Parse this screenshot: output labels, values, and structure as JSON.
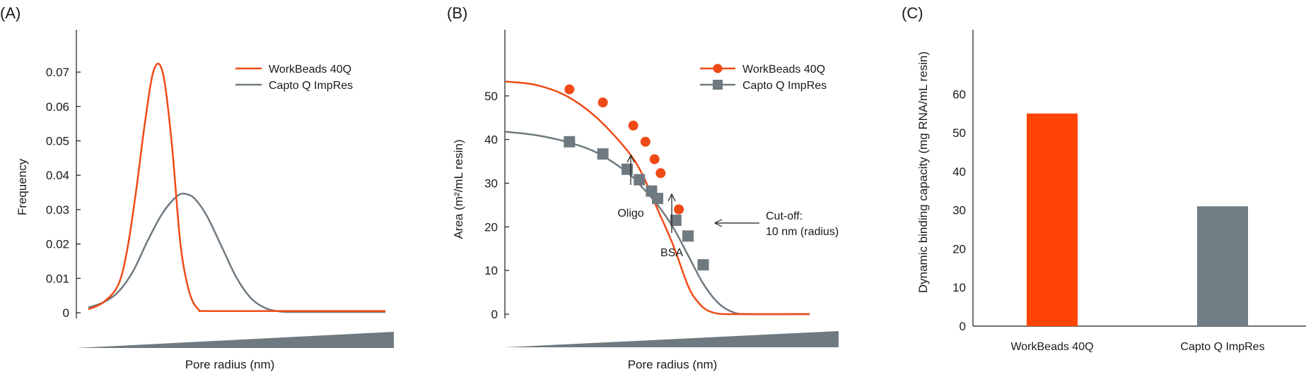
{
  "colors": {
    "orange": "#ef4a16",
    "gray": "#6f7a80",
    "bar_orange": "#ff4405",
    "bar_gray": "#717e84",
    "axis": "#1a1a1a"
  },
  "chart_data": [
    {
      "panel": "(A)",
      "type": "line",
      "xlabel": "Pore radius (nm)",
      "ylabel": "Frequency",
      "ylim": [
        0,
        0.075
      ],
      "yticks": [
        "0",
        "0.01",
        "0.02",
        "0.03",
        "0.04",
        "0.05",
        "0.06",
        "0.07"
      ],
      "ytick_values": [
        0,
        0.01,
        0.02,
        0.03,
        0.04,
        0.05,
        0.06,
        0.07
      ],
      "x_axis": "unlabeled increasing wedge (no numeric ticks)",
      "legend": "top-right",
      "series": [
        {
          "name": "WorkBeads 40Q",
          "color": "#ef4a16",
          "x": [
            0,
            0.05,
            0.1,
            0.13,
            0.16,
            0.19,
            0.22,
            0.25,
            0.28,
            0.31,
            0.34,
            0.37,
            0.4,
            0.6,
            0.8,
            1.0
          ],
          "y": [
            0.001,
            0.003,
            0.008,
            0.018,
            0.035,
            0.055,
            0.0705,
            0.07,
            0.05,
            0.02,
            0.006,
            0.001,
            0.0005,
            0.0005,
            0.0005,
            0.0005
          ]
        },
        {
          "name": "Capto Q ImpRes",
          "color": "#6f7a80",
          "x": [
            0,
            0.05,
            0.1,
            0.15,
            0.2,
            0.25,
            0.3,
            0.33,
            0.36,
            0.4,
            0.45,
            0.5,
            0.55,
            0.6,
            0.65,
            0.7,
            0.8,
            1.0
          ],
          "y": [
            0.0015,
            0.003,
            0.006,
            0.012,
            0.021,
            0.029,
            0.034,
            0.0345,
            0.033,
            0.028,
            0.019,
            0.01,
            0.004,
            0.0012,
            0.0003,
            0.0002,
            0.0002,
            0.0002
          ]
        }
      ]
    },
    {
      "panel": "(B)",
      "type": "line",
      "xlabel": "Pore radius (nm)",
      "ylabel": "Area (m²/mL resin)",
      "ylim": [
        0,
        57
      ],
      "yticks": [
        "0",
        "10",
        "20",
        "30",
        "40",
        "50"
      ],
      "ytick_values": [
        0,
        10,
        20,
        30,
        40,
        50
      ],
      "x_axis": "unlabeled increasing wedge (no numeric ticks)",
      "legend": "top-right",
      "series": [
        {
          "name": "WorkBeads 40Q",
          "color": "#ef4a16",
          "marker": "circle",
          "curve_x": [
            0,
            0.1,
            0.2,
            0.3,
            0.4,
            0.45,
            0.5,
            0.55,
            0.6,
            0.63,
            0.66,
            0.7,
            0.75,
            0.8,
            1.0
          ],
          "curve_y": [
            53.3,
            52.5,
            50,
            45,
            37.5,
            32,
            24,
            16,
            6.5,
            3,
            1,
            0.1,
            0,
            0,
            0
          ],
          "points_x": [
            0.21,
            0.32,
            0.42,
            0.46,
            0.49,
            0.51,
            0.57
          ],
          "points_y": [
            51.5,
            48.5,
            43.2,
            39.5,
            35.5,
            32.3,
            24
          ]
        },
        {
          "name": "Capto Q ImpRes",
          "color": "#6f7a80",
          "marker": "square",
          "curve_x": [
            0,
            0.1,
            0.2,
            0.3,
            0.4,
            0.45,
            0.5,
            0.55,
            0.6,
            0.65,
            0.7,
            0.75,
            0.8,
            1.0
          ],
          "curve_y": [
            41.8,
            41,
            39.5,
            37,
            32.5,
            29,
            25,
            20,
            13.5,
            7,
            2.5,
            0.4,
            0,
            0
          ],
          "points_x": [
            0.21,
            0.32,
            0.4,
            0.44,
            0.48,
            0.5,
            0.56,
            0.6,
            0.65
          ],
          "points_y": [
            39.5,
            36.7,
            33.2,
            30.8,
            28.2,
            26.5,
            21.5,
            17.9,
            11.3
          ]
        }
      ],
      "annotations": [
        "Oligo",
        "BSA",
        "Cut-off:",
        "10 nm (radius)"
      ]
    },
    {
      "panel": "(C)",
      "type": "bar",
      "ylabel": "Dynamic binding capacity (mg RNA/mL resin)",
      "ylim": [
        0,
        68
      ],
      "yticks": [
        "0",
        "10",
        "20",
        "30",
        "40",
        "50",
        "60"
      ],
      "ytick_values": [
        0,
        10,
        20,
        30,
        40,
        50,
        60
      ],
      "categories": [
        "WorkBeads 40Q",
        "Capto Q ImpRes"
      ],
      "values": [
        55,
        31
      ]
    }
  ]
}
